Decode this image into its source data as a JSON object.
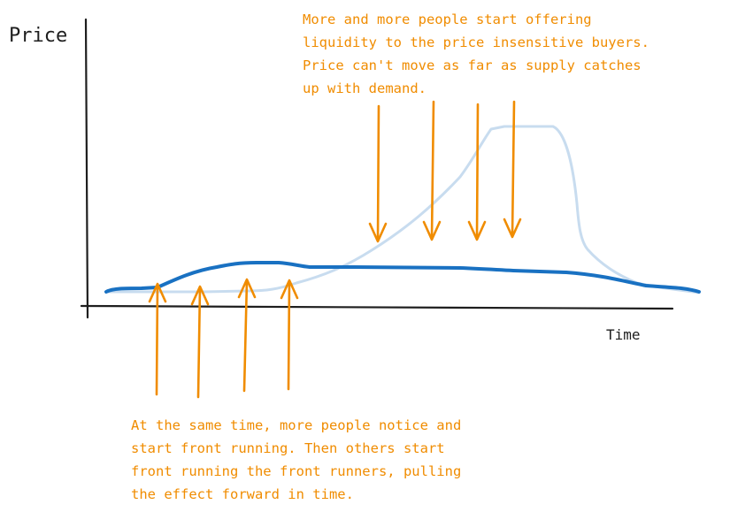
{
  "axes": {
    "y_label": "Price",
    "x_label": "Time"
  },
  "annotations": {
    "top_lines": [
      "More and more people start offering",
      "liquidity to the price insensitive buyers.",
      "Price can't move as far as supply catches",
      "up with demand."
    ],
    "bottom_lines": [
      "At the same time, more people notice and",
      "start front running. Then others start",
      "front running the front runners, pulling",
      "the effect forward in time."
    ]
  },
  "colors": {
    "axis": "#1e1e1e",
    "annotation": "#f08c00",
    "arrow": "#f08c00",
    "curve_dark": "#1971c2",
    "curve_light": "#c8dcef"
  },
  "arrows": {
    "down_count": 4,
    "up_count": 4
  },
  "curves": {
    "dark": "thick dark blue curve",
    "light": "pale light blue curve"
  }
}
